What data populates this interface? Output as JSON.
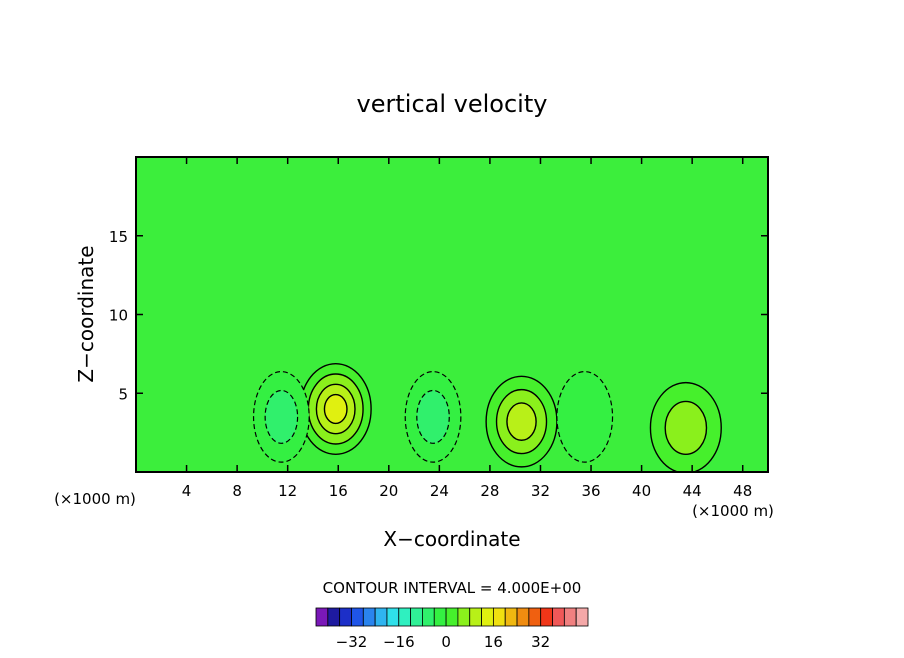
{
  "chart_data": {
    "type": "heatmap",
    "title": "vertical velocity",
    "xlabel": "X−coordinate",
    "ylabel": "Z−coordinate",
    "x_unit_left": "(×1000 m)",
    "x_unit_right": "(×1000 m)",
    "xlim": [
      0,
      50
    ],
    "ylim": [
      0,
      20
    ],
    "x_ticks": [
      4,
      8,
      12,
      16,
      20,
      24,
      28,
      32,
      36,
      40,
      44,
      48
    ],
    "y_ticks": [
      5,
      10,
      15
    ],
    "contour_interval_label": "CONTOUR INTERVAL = 4.000E+00",
    "contour_interval": 4,
    "colorbar": {
      "ticks": [
        {
          "value": -32,
          "label": "−32"
        },
        {
          "value": -16,
          "label": "−16"
        },
        {
          "value": 0,
          "label": "0"
        },
        {
          "value": 16,
          "label": "16"
        },
        {
          "value": 32,
          "label": "32"
        }
      ],
      "bins": [
        -44,
        -40,
        -36,
        -32,
        -28,
        -24,
        -20,
        -16,
        -12,
        -8,
        -4,
        0,
        4,
        8,
        12,
        16,
        20,
        24,
        28,
        32,
        36,
        40,
        44
      ],
      "colors": [
        "#7a18b8",
        "#1e1aa0",
        "#1c2fc8",
        "#1f55e8",
        "#2a84ee",
        "#2fb4f0",
        "#2fe0ea",
        "#2ff0c0",
        "#30f096",
        "#30f06c",
        "#34f042",
        "#46f02c",
        "#8af01c",
        "#b8f018",
        "#e0f010",
        "#f0e010",
        "#f0b810",
        "#f08c10",
        "#f06010",
        "#f03618",
        "#f05858",
        "#f08080",
        "#f4a8a8"
      ]
    },
    "background_color": "#3cee3c",
    "features": [
      {
        "type": "updraft",
        "x": 15.8,
        "z": 4,
        "peak_value": 16
      },
      {
        "type": "updraft",
        "x": 30.5,
        "z": 3.2,
        "peak_value": 12
      },
      {
        "type": "updraft",
        "x": 43.5,
        "z": 2.8,
        "peak_value": 8
      },
      {
        "type": "downdraft",
        "x": 11.5,
        "z": 3.5,
        "peak_value": -8
      },
      {
        "type": "downdraft",
        "x": 23.5,
        "z": 3.5,
        "peak_value": -8
      },
      {
        "type": "downdraft",
        "x": 35.5,
        "z": 3.5,
        "peak_value": -4
      }
    ]
  }
}
